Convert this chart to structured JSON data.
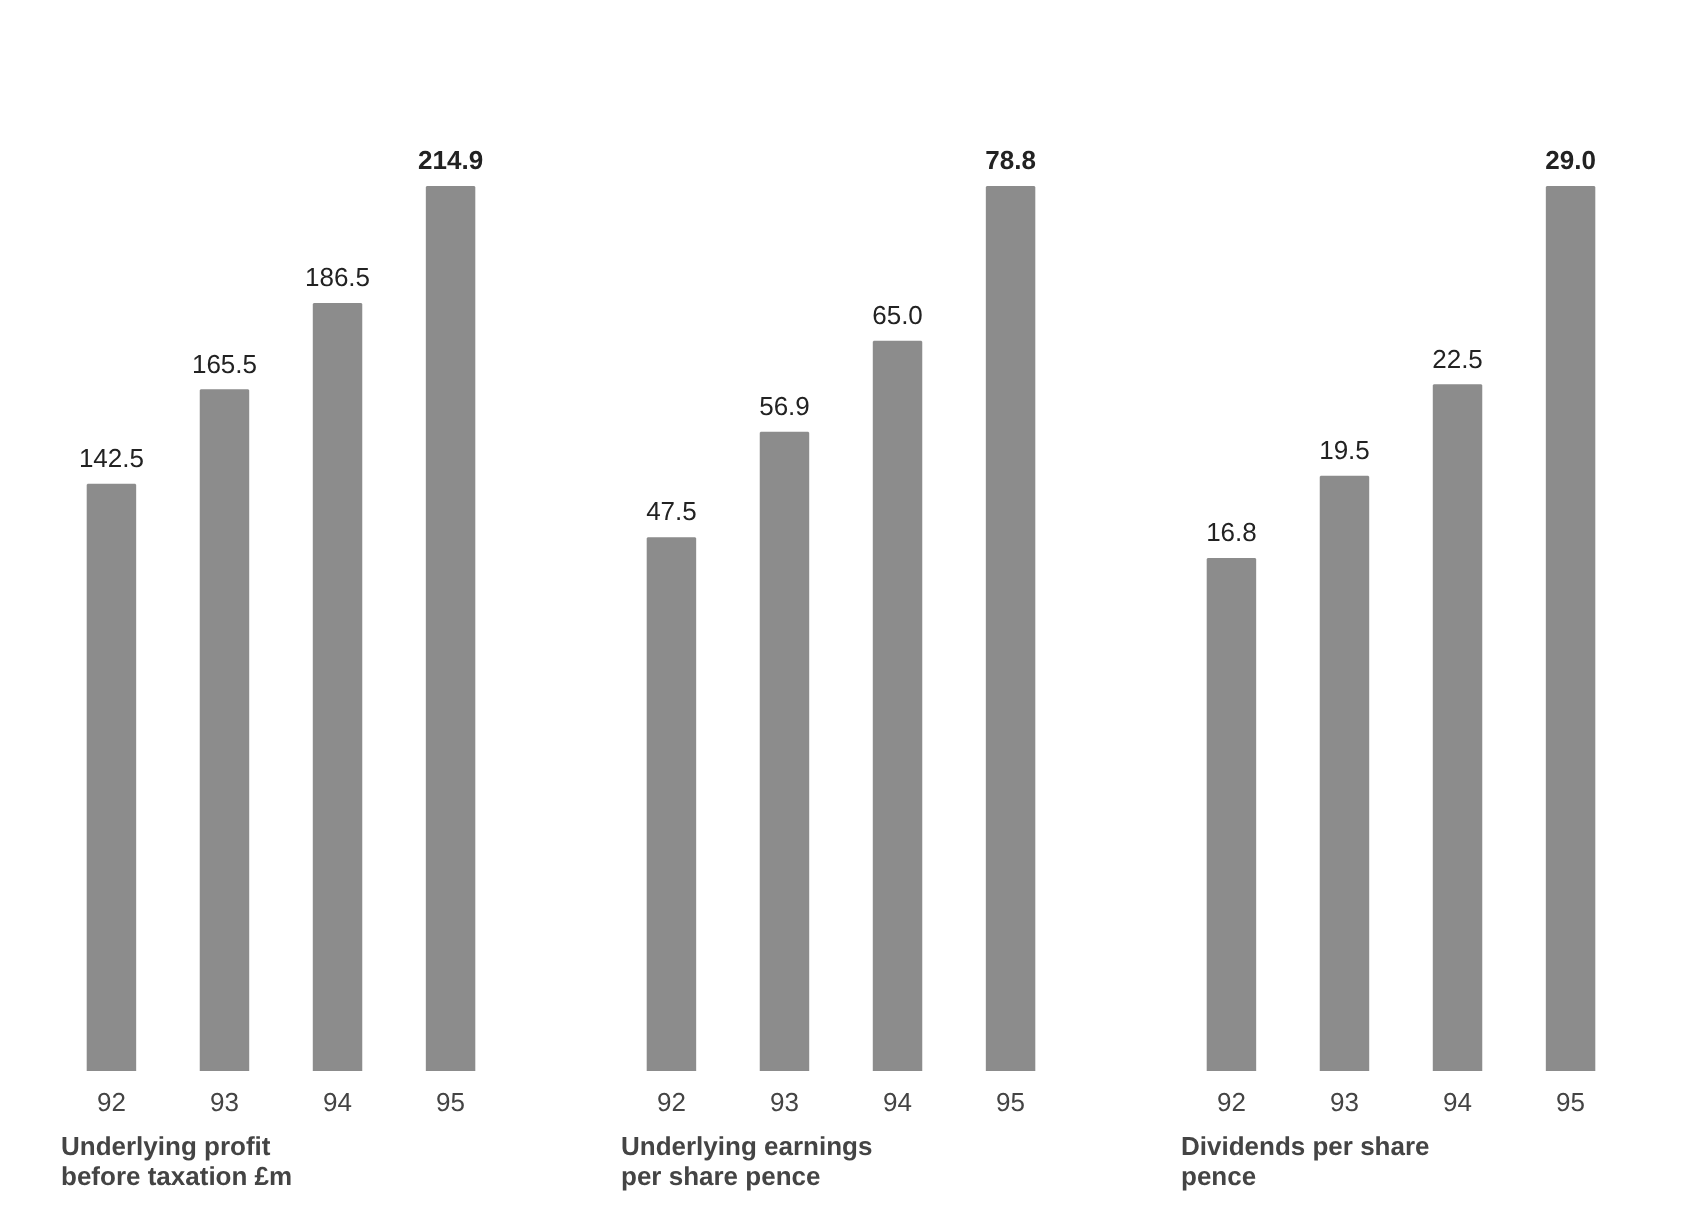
{
  "chart_data": [
    {
      "type": "bar",
      "title": "Underlying profit\nbefore taxation £m",
      "categories": [
        "92",
        "93",
        "94",
        "95"
      ],
      "values": [
        142.5,
        165.5,
        186.5,
        214.9
      ],
      "value_labels": [
        "142.5",
        "165.5",
        "186.5",
        "214.9"
      ],
      "color": "#8c8c8c",
      "grid": false,
      "tick_labels": "x"
    },
    {
      "type": "bar",
      "title": "Underlying earnings\nper share pence",
      "categories": [
        "92",
        "93",
        "94",
        "95"
      ],
      "values": [
        47.5,
        56.9,
        65.0,
        78.8
      ],
      "value_labels": [
        "47.5",
        "56.9",
        "65.0",
        "78.8"
      ],
      "color": "#8c8c8c",
      "grid": false,
      "tick_labels": "x"
    },
    {
      "type": "bar",
      "title": "Dividends per share\npence",
      "categories": [
        "92",
        "93",
        "94",
        "95"
      ],
      "values": [
        16.8,
        19.5,
        22.5,
        29.0
      ],
      "value_labels": [
        "16.8",
        "19.5",
        "22.5",
        "29.0"
      ],
      "color": "#8c8c8c",
      "grid": false,
      "tick_labels": "x"
    }
  ]
}
